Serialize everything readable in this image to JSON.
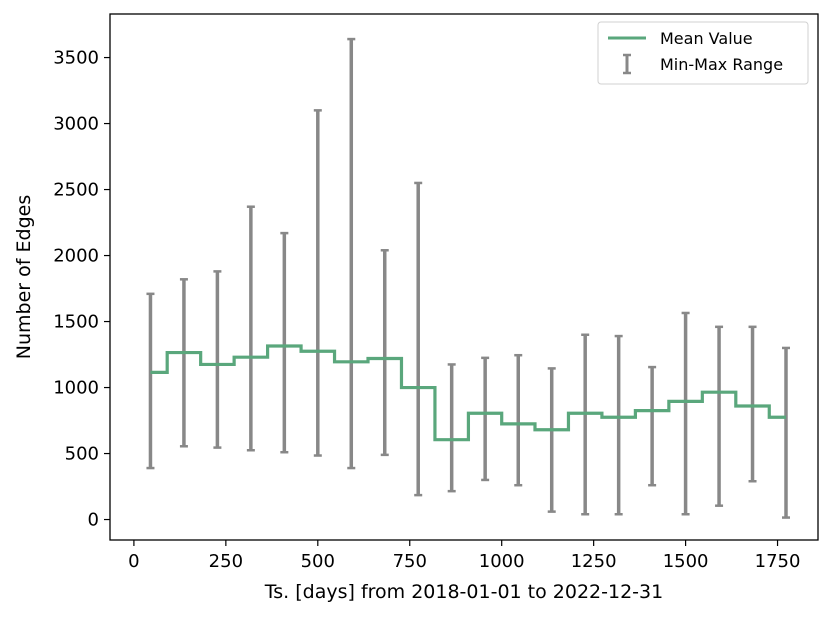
{
  "chart_data": {
    "type": "line",
    "title": "",
    "xlabel": "Ts. [days] from 2018-01-01 to 2022-12-31",
    "ylabel": "Number of Edges",
    "xlim": [
      -65,
      1860
    ],
    "ylim": [
      -155,
      3830
    ],
    "xticks": [
      0,
      250,
      500,
      750,
      1000,
      1250,
      1500,
      1750
    ],
    "yticks": [
      0,
      500,
      1000,
      1500,
      2000,
      2500,
      3000,
      3500
    ],
    "grid": false,
    "legend_position": "upper right",
    "colors": {
      "mean": "#5aa77c",
      "range": "#888888"
    },
    "legend": [
      "Mean Value",
      "Min-Max Range"
    ],
    "series": [
      {
        "name": "Mean Value",
        "style": "step",
        "x": [
          45,
          136,
          227,
          318,
          409,
          500,
          591,
          682,
          773,
          864,
          955,
          1045,
          1136,
          1227,
          1318,
          1409,
          1500,
          1591,
          1682,
          1773
        ],
        "mean": [
          1115,
          1265,
          1175,
          1230,
          1315,
          1275,
          1195,
          1220,
          1000,
          605,
          805,
          725,
          680,
          805,
          775,
          825,
          895,
          965,
          860,
          775
        ]
      },
      {
        "name": "Min-Max Range",
        "style": "errorbar",
        "x": [
          45,
          136,
          227,
          318,
          409,
          500,
          591,
          682,
          773,
          864,
          955,
          1045,
          1136,
          1227,
          1318,
          1409,
          1500,
          1591,
          1682,
          1773
        ],
        "min": [
          390,
          555,
          545,
          525,
          510,
          485,
          390,
          490,
          185,
          215,
          300,
          260,
          60,
          40,
          40,
          260,
          40,
          105,
          290,
          15
        ],
        "max": [
          1710,
          1820,
          1880,
          2370,
          2170,
          3100,
          3640,
          2040,
          2550,
          1175,
          1225,
          1245,
          1145,
          1400,
          1390,
          1155,
          1565,
          1460,
          1460,
          1300
        ]
      }
    ]
  }
}
